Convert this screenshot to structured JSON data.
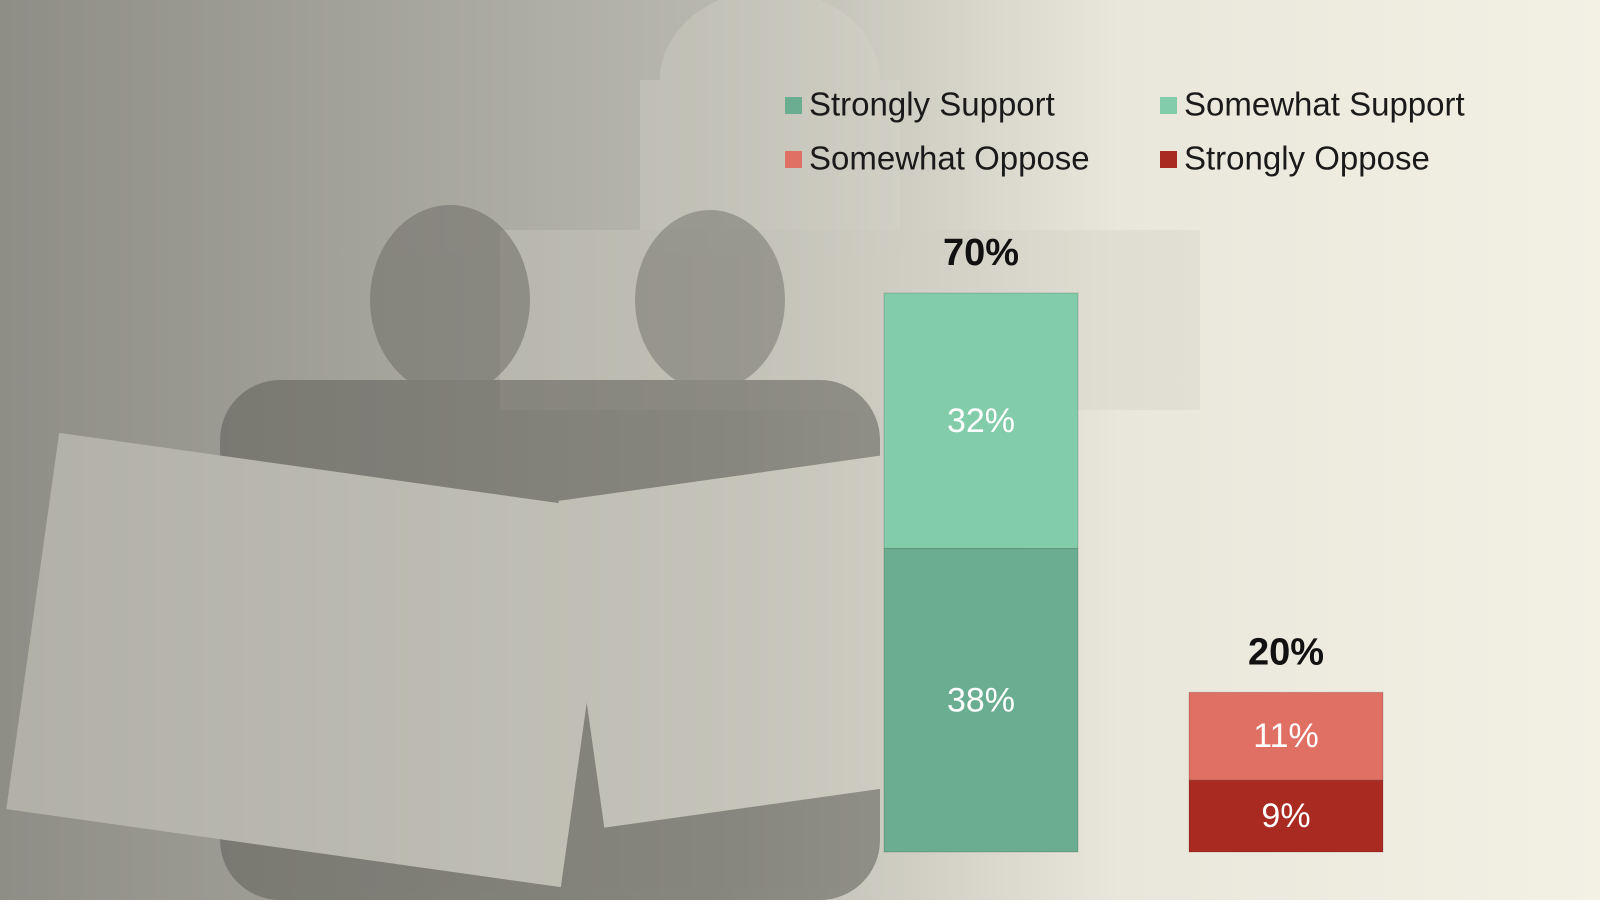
{
  "chart_data": {
    "type": "stacked_bar",
    "categories": [
      null,
      null
    ],
    "series": [
      {
        "name": "Strongly Support",
        "color": "#6aad90",
        "values": [
          38,
          null
        ],
        "value_labels": [
          "38%",
          null
        ]
      },
      {
        "name": "Somewhat Support",
        "color": "#83cca9",
        "values": [
          32,
          null
        ],
        "value_labels": [
          "32%",
          null
        ]
      },
      {
        "name": "Strongly Oppose",
        "color": "#a82a20",
        "values": [
          null,
          9
        ],
        "value_labels": [
          null,
          "9%"
        ]
      },
      {
        "name": "Somewhat Oppose",
        "color": "#e06f64",
        "values": [
          null,
          11
        ],
        "value_labels": [
          null,
          "11%"
        ]
      }
    ],
    "totals": [
      70,
      20
    ],
    "total_labels": [
      "70%",
      "20%"
    ],
    "ylim": [
      0,
      70
    ],
    "legend": "top-right"
  }
}
